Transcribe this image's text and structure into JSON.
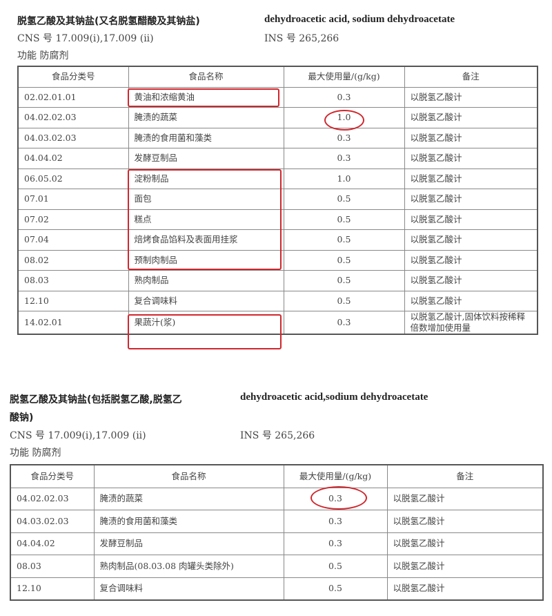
{
  "section1": {
    "title": "脱氢乙酸及其钠盐(又名脱氢醋酸及其钠盐)",
    "english": "dehydroacetic acid, sodium dehydroacetate",
    "cns": "CNS 号   17.009(i),17.009 (ii)",
    "ins": "INS 号   265,266",
    "function": "功能   防腐剂",
    "headers": [
      "食品分类号",
      "食品名称",
      "最大使用量/(g/kg)",
      "备注"
    ],
    "rows": [
      [
        "02.02.01.01",
        "黄油和浓缩黄油",
        "0.3",
        "以脱氢乙酸计"
      ],
      [
        "04.02.02.03",
        "腌渍的蔬菜",
        "1.0",
        "以脱氢乙酸计"
      ],
      [
        "04.03.02.03",
        "腌渍的食用菌和藻类",
        "0.3",
        "以脱氢乙酸计"
      ],
      [
        "04.04.02",
        "发酵豆制品",
        "0.3",
        "以脱氢乙酸计"
      ],
      [
        "06.05.02",
        "淀粉制品",
        "1.0",
        "以脱氢乙酸计"
      ],
      [
        "07.01",
        "面包",
        "0.5",
        "以脱氢乙酸计"
      ],
      [
        "07.02",
        "糕点",
        "0.5",
        "以脱氢乙酸计"
      ],
      [
        "07.04",
        "焙烤食品馅料及表面用挂浆",
        "0.5",
        "以脱氢乙酸计"
      ],
      [
        "08.02",
        "预制肉制品",
        "0.5",
        "以脱氢乙酸计"
      ],
      [
        "08.03",
        "熟肉制品",
        "0.5",
        "以脱氢乙酸计"
      ],
      [
        "12.10",
        "复合调味料",
        "0.5",
        "以脱氢乙酸计"
      ],
      [
        "14.02.01",
        "果蔬汁(浆)",
        "0.3",
        "以脱氢乙酸计,固体饮料按稀释倍数增加使用量"
      ]
    ]
  },
  "section2": {
    "title_line1": "脱氢乙酸及其钠盐(包括脱氢乙酸,脱氢乙",
    "title_line2": "酸钠)",
    "english": "dehydroacetic acid,sodium dehydroacetate",
    "cns": "CNS 号   17.009(i),17.009 (ii)",
    "ins": "INS 号   265,266",
    "function": "功能   防腐剂",
    "headers": [
      "食品分类号",
      "食品名称",
      "最大使用量/(g/kg)",
      "备注"
    ],
    "rows": [
      [
        "04.02.02.03",
        "腌渍的蔬菜",
        "0.3",
        "以脱氢乙酸计"
      ],
      [
        "04.03.02.03",
        "腌渍的食用菌和藻类",
        "0.3",
        "以脱氢乙酸计"
      ],
      [
        "04.04.02",
        "发酵豆制品",
        "0.3",
        "以脱氢乙酸计"
      ],
      [
        "08.03",
        "熟肉制品(08.03.08 肉罐头类除外)",
        "0.5",
        "以脱氢乙酸计"
      ],
      [
        "12.10",
        "复合调味料",
        "0.5",
        "以脱氢乙酸计"
      ]
    ]
  },
  "annotation_color": "#d0262c"
}
